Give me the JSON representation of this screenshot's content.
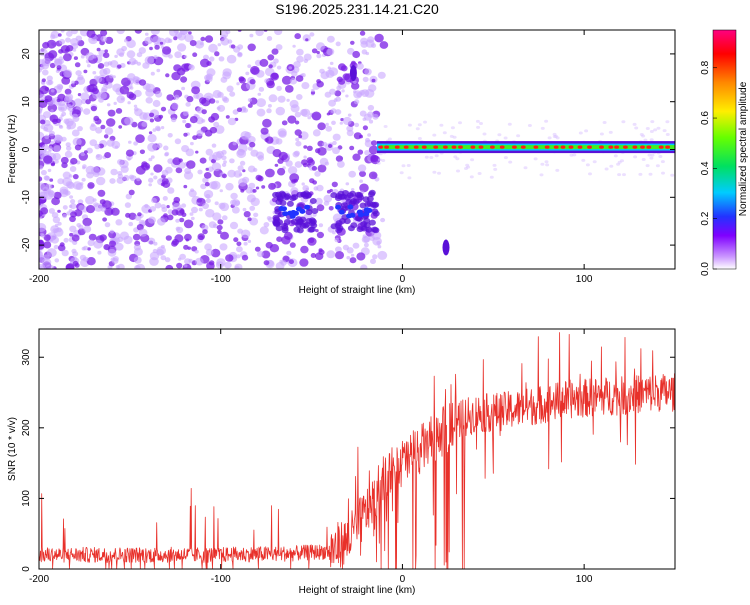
{
  "title": "S196.2025.231.14.21.C20",
  "chart_data": [
    {
      "type": "heatmap",
      "xlabel": "Height of straight line (km)",
      "ylabel": "Frequency (Hz)",
      "xlim": [
        -200,
        150
      ],
      "ylim": [
        -25,
        25
      ],
      "x_ticks": [
        -200,
        -100,
        0,
        100
      ],
      "y_ticks": [
        -20,
        -10,
        0,
        10,
        20
      ],
      "colorbar": {
        "label": "Normalized spectral amplitude",
        "range": [
          0,
          0.95
        ],
        "ticks": [
          0.0,
          0.2,
          0.4,
          0.6,
          0.8
        ],
        "tick_labels": [
          "0.0",
          "0.2",
          "0.4",
          "0.6",
          "0.8"
        ]
      },
      "features": [
        {
          "name": "background_noise",
          "x_range": [
            -200,
            -10
          ],
          "y_range": [
            -25,
            25
          ],
          "amplitude": 0.1
        },
        {
          "name": "carrier_line",
          "x_range": [
            -14,
            150
          ],
          "frequency": 0.5,
          "amplitude": 0.9
        },
        {
          "name": "low_freq_blob_1",
          "x_range": [
            -70,
            -48
          ],
          "frequency": -13,
          "amplitude": 0.25
        },
        {
          "name": "low_freq_blob_2",
          "x_range": [
            -38,
            -13
          ],
          "frequency": -13,
          "amplitude": 0.3
        },
        {
          "name": "spike_high",
          "x": -27,
          "frequency": 16,
          "amplitude": 0.1
        },
        {
          "name": "spike_low",
          "x": 24,
          "frequency": -20.5,
          "amplitude": 0.1
        }
      ]
    },
    {
      "type": "line",
      "xlabel": "Height of straight line (km)",
      "ylabel": "SNR (10 * v/v)",
      "xlim": [
        -200,
        150
      ],
      "ylim": [
        0,
        340
      ],
      "x_ticks": [
        -200,
        -100,
        0,
        100
      ],
      "y_ticks": [
        0,
        100,
        200,
        300
      ],
      "color": "#e8302a",
      "series": [
        {
          "name": "SNR",
          "x": [
            -200,
            -180,
            -160,
            -140,
            -120,
            -100,
            -80,
            -60,
            -40,
            -30,
            -20,
            -10,
            0,
            10,
            20,
            25,
            30,
            40,
            50,
            60,
            70,
            80,
            90,
            100,
            110,
            120,
            130,
            140,
            150
          ],
          "values": [
            20,
            20,
            20,
            20,
            20,
            20,
            21,
            22,
            25,
            40,
            80,
            130,
            150,
            170,
            190,
            200,
            210,
            220,
            222,
            225,
            230,
            235,
            240,
            242,
            245,
            245,
            248,
            250,
            250
          ]
        }
      ]
    }
  ]
}
